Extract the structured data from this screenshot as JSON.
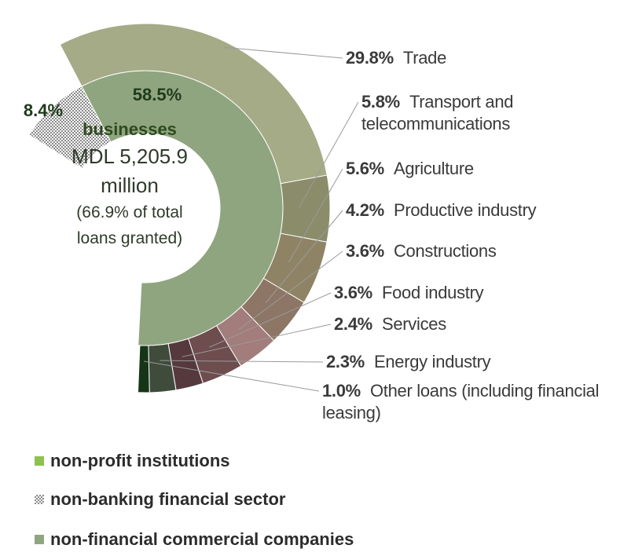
{
  "chart_data": {
    "type": "sunburst",
    "inner": {
      "categories": [
        "non-profit institutions",
        "non-banking financial sector",
        "non-financial commercial companies"
      ],
      "values": [
        0,
        8.4,
        58.5
      ],
      "value_labels": [
        null,
        "8.4%",
        "58.5%"
      ],
      "colors": [
        "#8fc14f",
        "hatch",
        "#8fa57f"
      ]
    },
    "outer": {
      "categories": [
        "Trade",
        "Transport and telecommunications",
        "Agriculture",
        "Productive industry",
        "Constructions",
        "Food industry",
        "Services",
        "Energy industry",
        "Other loans (including financial leasing)"
      ],
      "values": [
        29.8,
        5.8,
        5.6,
        4.2,
        3.6,
        3.6,
        2.4,
        2.3,
        1.0
      ],
      "value_labels": [
        "29.8%",
        "5.8%",
        "5.6%",
        "4.2%",
        "3.6%",
        "3.6%",
        "2.4%",
        "2.3%",
        "1.0%"
      ],
      "colors": [
        "#a4ab86",
        "#8b8c6a",
        "#8e8465",
        "#8d7665",
        "#a27d7b",
        "#6e4d4f",
        "#55393d",
        "#3f4c3c",
        "#163516"
      ]
    },
    "center_text": [
      "businesses",
      "MDL 5,205.9",
      "million",
      "(66.9% of total",
      "loans granted)"
    ]
  }
}
